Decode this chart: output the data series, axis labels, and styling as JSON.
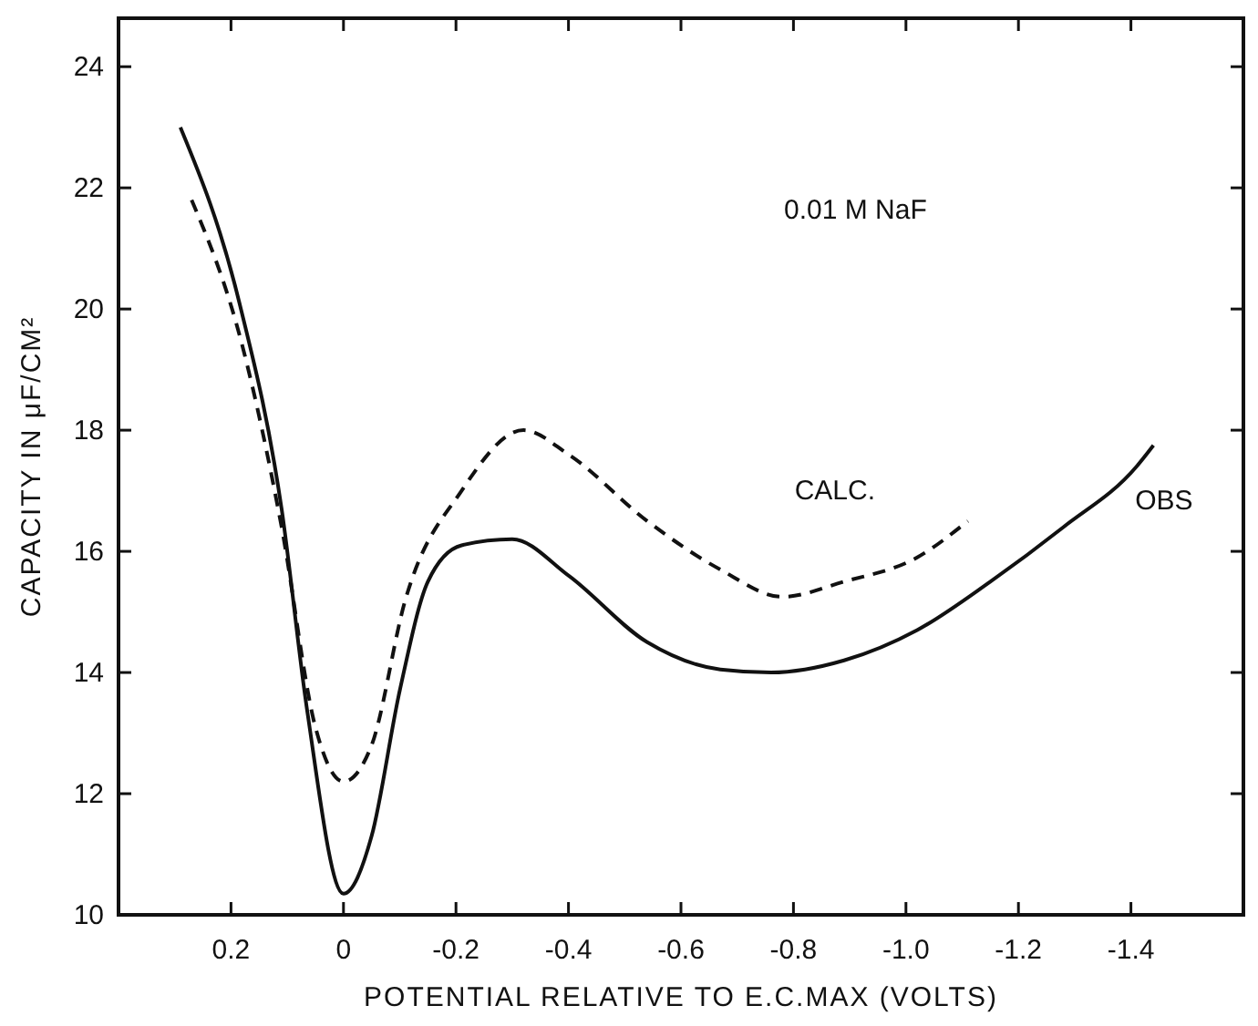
{
  "chart_data": {
    "type": "line",
    "xlabel": "POTENTIAL RELATIVE TO E.C.MAX (VOLTS)",
    "ylabel": "CAPACITY IN μF/CM²",
    "annotations": [
      "0.01 M NaF"
    ],
    "xlim": [
      0.4,
      -1.6
    ],
    "ylim": [
      10,
      24.8
    ],
    "xticks": [
      0.2,
      0,
      {
        "value": -0.2,
        "label": "-0.2"
      },
      {
        "value": -0.4,
        "label": "-0.4"
      },
      {
        "value": -0.6,
        "label": "-0.6"
      },
      {
        "value": -0.8,
        "label": "-0.8"
      },
      {
        "value": -1.0,
        "label": "-1.0"
      },
      {
        "value": -1.2,
        "label": "-1.2"
      },
      {
        "value": -1.4,
        "label": "-1.4"
      }
    ],
    "yticks": [
      10,
      12,
      14,
      16,
      18,
      20,
      22,
      24
    ],
    "grid": false,
    "series": [
      {
        "name": "CALC.",
        "color": "#111111",
        "line_style": "dashed",
        "x": [
          0.27,
          0.18,
          0.11,
          0.05,
          0,
          -0.05,
          -0.11,
          -0.21,
          -0.32,
          -0.4,
          -0.54,
          -0.67,
          -0.78,
          -0.89,
          -1.02,
          -1.11
        ],
        "values": [
          21.8,
          19.4,
          16.4,
          13.1,
          12.2,
          12.8,
          15.2,
          17.0,
          18.0,
          17.6,
          16.5,
          15.7,
          15.25,
          15.5,
          15.9,
          16.5
        ]
      },
      {
        "name": "OBS",
        "color": "#111111",
        "line_style": "solid",
        "x": [
          0.29,
          0.185,
          0.11,
          0.065,
          0,
          -0.05,
          -0.1,
          -0.15,
          -0.21,
          -0.3,
          -0.4,
          -0.54,
          -0.67,
          -0.76,
          -0.89,
          -1.02,
          -1.15,
          -1.28,
          -1.41,
          -1.44
        ],
        "values": [
          23.0,
          20.1,
          16.7,
          13.4,
          10.35,
          11.3,
          13.7,
          15.5,
          16.1,
          16.2,
          15.6,
          14.5,
          14.05,
          14.0,
          14.2,
          14.7,
          15.5,
          16.4,
          17.4,
          17.75
        ]
      }
    ]
  }
}
